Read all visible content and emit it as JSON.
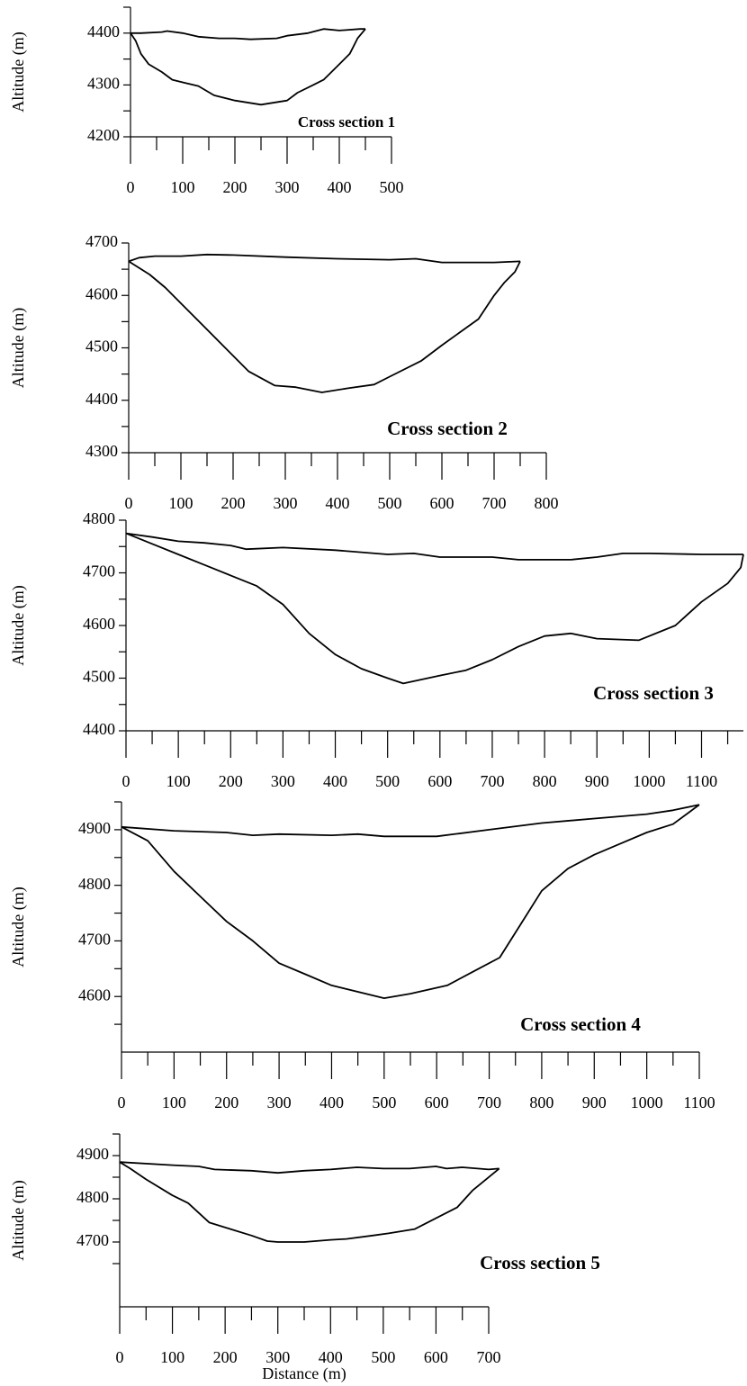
{
  "chart_data": [
    {
      "type": "line",
      "ylabel": "Altitude (m)",
      "annotation": "Cross section 1",
      "xlim": [
        0,
        500
      ],
      "xticks": [
        0,
        100,
        200,
        300,
        400,
        500
      ],
      "ylim": [
        4200,
        4450
      ],
      "yticks": [
        4200,
        4300,
        4400
      ],
      "series": [
        {
          "color": "#000000",
          "x": [
            0,
            20,
            60,
            70,
            100,
            130,
            170,
            200,
            230,
            280,
            300,
            340,
            370,
            400,
            440,
            450
          ],
          "values": [
            4400,
            4400,
            4402,
            4404,
            4400,
            4393,
            4390,
            4390,
            4388,
            4390,
            4395,
            4400,
            4408,
            4405,
            4408,
            4408
          ]
        },
        {
          "color": "#000000",
          "x": [
            0,
            10,
            20,
            35,
            60,
            80,
            100,
            130,
            160,
            200,
            250,
            300,
            320,
            350,
            370,
            400,
            420,
            435,
            450
          ],
          "values": [
            4400,
            4385,
            4360,
            4340,
            4325,
            4310,
            4305,
            4298,
            4280,
            4270,
            4262,
            4270,
            4285,
            4300,
            4310,
            4340,
            4360,
            4390,
            4408
          ]
        }
      ]
    },
    {
      "type": "line",
      "ylabel": "Altitude (m)",
      "annotation": "Cross section 2",
      "xlim": [
        0,
        800
      ],
      "xticks": [
        0,
        100,
        200,
        300,
        400,
        500,
        600,
        700,
        800
      ],
      "ylim": [
        4300,
        4700
      ],
      "yticks": [
        4300,
        4400,
        4500,
        4600,
        4700
      ],
      "series": [
        {
          "color": "#000000",
          "x": [
            0,
            20,
            50,
            100,
            150,
            200,
            300,
            400,
            500,
            550,
            600,
            700,
            750
          ],
          "values": [
            4665,
            4672,
            4675,
            4675,
            4678,
            4677,
            4673,
            4670,
            4668,
            4670,
            4663,
            4663,
            4665
          ]
        },
        {
          "color": "#000000",
          "x": [
            0,
            40,
            70,
            100,
            140,
            180,
            230,
            280,
            320,
            370,
            420,
            470,
            500,
            560,
            600,
            670,
            700,
            720,
            740,
            750
          ],
          "values": [
            4665,
            4640,
            4615,
            4585,
            4545,
            4505,
            4455,
            4428,
            4425,
            4415,
            4423,
            4430,
            4445,
            4475,
            4505,
            4555,
            4600,
            4625,
            4645,
            4665
          ]
        }
      ]
    },
    {
      "type": "line",
      "ylabel": "Altitude (m)",
      "annotation": "Cross section 3",
      "xlim": [
        0,
        1180
      ],
      "xticks": [
        0,
        100,
        200,
        300,
        400,
        500,
        600,
        700,
        800,
        900,
        1000,
        1100
      ],
      "ylim": [
        4400,
        4800
      ],
      "yticks": [
        4400,
        4500,
        4600,
        4700,
        4800
      ],
      "series": [
        {
          "color": "#000000",
          "x": [
            0,
            50,
            100,
            150,
            200,
            230,
            300,
            400,
            500,
            550,
            600,
            700,
            750,
            850,
            900,
            950,
            1000,
            1100,
            1180
          ],
          "values": [
            4775,
            4768,
            4760,
            4757,
            4752,
            4745,
            4748,
            4743,
            4735,
            4737,
            4730,
            4730,
            4725,
            4725,
            4730,
            4737,
            4737,
            4735,
            4735
          ]
        },
        {
          "color": "#000000",
          "x": [
            0,
            50,
            100,
            150,
            200,
            250,
            300,
            350,
            400,
            450,
            500,
            530,
            600,
            650,
            700,
            750,
            800,
            850,
            900,
            980,
            1050,
            1100,
            1150,
            1175,
            1180
          ],
          "values": [
            4775,
            4755,
            4735,
            4715,
            4695,
            4675,
            4640,
            4585,
            4545,
            4518,
            4500,
            4490,
            4505,
            4515,
            4535,
            4560,
            4580,
            4585,
            4575,
            4572,
            4600,
            4645,
            4680,
            4710,
            4735
          ]
        }
      ]
    },
    {
      "type": "line",
      "ylabel": "Altitude (m)",
      "annotation": "Cross section 4",
      "xlim": [
        0,
        1100
      ],
      "xticks": [
        0,
        100,
        200,
        300,
        400,
        500,
        600,
        700,
        800,
        900,
        1000,
        1100
      ],
      "ylim": [
        4500,
        4950
      ],
      "yticks": [
        4600,
        4700,
        4800,
        4900
      ],
      "series": [
        {
          "color": "#000000",
          "x": [
            0,
            100,
            200,
            250,
            300,
            400,
            450,
            500,
            600,
            700,
            800,
            900,
            1000,
            1050,
            1100
          ],
          "values": [
            4905,
            4898,
            4895,
            4890,
            4892,
            4890,
            4892,
            4888,
            4888,
            4900,
            4912,
            4920,
            4928,
            4935,
            4945
          ]
        },
        {
          "color": "#000000",
          "x": [
            0,
            50,
            100,
            150,
            200,
            250,
            300,
            350,
            400,
            500,
            550,
            620,
            680,
            720,
            760,
            800,
            850,
            900,
            950,
            1000,
            1050,
            1100
          ],
          "values": [
            4905,
            4880,
            4825,
            4780,
            4735,
            4700,
            4660,
            4640,
            4620,
            4597,
            4605,
            4620,
            4650,
            4670,
            4730,
            4790,
            4830,
            4855,
            4875,
            4895,
            4910,
            4945
          ]
        }
      ]
    },
    {
      "type": "line",
      "ylabel": "Altitude (m)",
      "xlabel": "Distance (m)",
      "annotation": "Cross section 5",
      "xlim": [
        0,
        700
      ],
      "xticks": [
        0,
        100,
        200,
        300,
        400,
        500,
        600,
        700
      ],
      "ylim": [
        4550,
        4950
      ],
      "yticks": [
        4700,
        4800,
        4900
      ],
      "series": [
        {
          "color": "#000000",
          "x": [
            0,
            100,
            150,
            180,
            250,
            300,
            350,
            400,
            450,
            500,
            550,
            600,
            620,
            650,
            700,
            720
          ],
          "values": [
            4885,
            4878,
            4875,
            4868,
            4865,
            4860,
            4865,
            4868,
            4873,
            4870,
            4870,
            4875,
            4870,
            4873,
            4868,
            4870
          ]
        },
        {
          "color": "#000000",
          "x": [
            0,
            20,
            50,
            100,
            130,
            170,
            210,
            250,
            280,
            300,
            350,
            400,
            430,
            480,
            510,
            560,
            600,
            640,
            670,
            720
          ],
          "values": [
            4885,
            4870,
            4845,
            4808,
            4790,
            4745,
            4730,
            4715,
            4702,
            4700,
            4700,
            4705,
            4707,
            4715,
            4720,
            4730,
            4755,
            4780,
            4820,
            4870
          ]
        }
      ]
    }
  ]
}
